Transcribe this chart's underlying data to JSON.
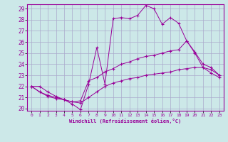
{
  "xlabel": "Windchill (Refroidissement éolien,°C)",
  "background_color": "#cce8e8",
  "grid_color": "#aaaacc",
  "line_color": "#990099",
  "xlim": [
    -0.5,
    23.5
  ],
  "ylim": [
    19.8,
    29.4
  ],
  "yticks": [
    20,
    21,
    22,
    23,
    24,
    25,
    26,
    27,
    28,
    29
  ],
  "xticks": [
    0,
    1,
    2,
    3,
    4,
    5,
    6,
    7,
    8,
    9,
    10,
    11,
    12,
    13,
    14,
    15,
    16,
    17,
    18,
    19,
    20,
    21,
    22,
    23
  ],
  "series1_x": [
    0,
    1,
    2,
    3,
    4,
    5,
    6,
    7,
    8,
    9,
    10,
    11,
    12,
    13,
    14,
    15,
    16,
    17,
    18,
    19,
    20,
    21,
    22,
    23
  ],
  "series1_y": [
    22.0,
    22.0,
    21.5,
    21.1,
    20.8,
    20.4,
    19.9,
    22.2,
    25.5,
    22.2,
    28.1,
    28.2,
    28.1,
    28.4,
    29.3,
    29.0,
    27.6,
    28.2,
    27.7,
    26.1,
    25.0,
    23.7,
    23.2,
    22.8
  ],
  "series2_x": [
    0,
    1,
    2,
    3,
    4,
    5,
    6,
    7,
    8,
    9,
    10,
    11,
    12,
    13,
    14,
    15,
    16,
    17,
    18,
    19,
    20,
    21,
    22,
    23
  ],
  "series2_y": [
    22.0,
    21.5,
    21.1,
    20.9,
    20.8,
    20.6,
    20.7,
    22.5,
    22.8,
    23.3,
    23.6,
    24.0,
    24.2,
    24.5,
    24.7,
    24.8,
    25.0,
    25.2,
    25.3,
    26.1,
    25.1,
    24.0,
    23.7,
    23.0
  ],
  "series3_x": [
    0,
    1,
    2,
    3,
    4,
    5,
    6,
    7,
    8,
    9,
    10,
    11,
    12,
    13,
    14,
    15,
    16,
    17,
    18,
    19,
    20,
    21,
    22,
    23
  ],
  "series3_y": [
    22.0,
    21.5,
    21.2,
    21.0,
    20.8,
    20.6,
    20.5,
    21.0,
    21.5,
    22.0,
    22.3,
    22.5,
    22.7,
    22.8,
    23.0,
    23.1,
    23.2,
    23.3,
    23.5,
    23.6,
    23.7,
    23.7,
    23.5,
    23.0
  ]
}
